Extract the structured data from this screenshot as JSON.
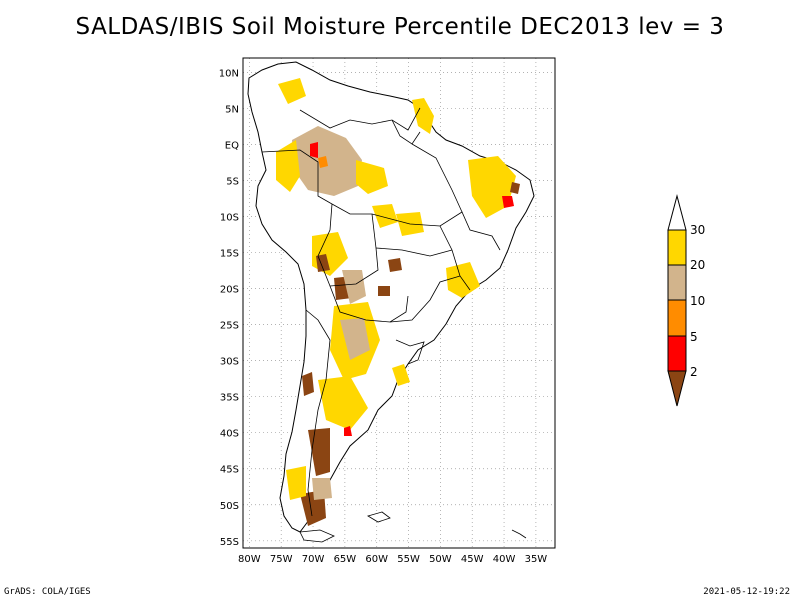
{
  "title": "SALDAS/IBIS Soil Moisture Percentile DEC2013 lev = 3",
  "footer": {
    "left": "GrADS: COLA/IGES",
    "right": "2021-05-12-19:22"
  },
  "map": {
    "region": "South America",
    "lon_range": [
      -81,
      -32
    ],
    "lat_range": [
      -56,
      12
    ],
    "lat_ticks": [
      {
        "v": 10,
        "label": "10N"
      },
      {
        "v": 5,
        "label": "5N"
      },
      {
        "v": 0,
        "label": "EQ"
      },
      {
        "v": -5,
        "label": "5S"
      },
      {
        "v": -10,
        "label": "10S"
      },
      {
        "v": -15,
        "label": "15S"
      },
      {
        "v": -20,
        "label": "20S"
      },
      {
        "v": -25,
        "label": "25S"
      },
      {
        "v": -30,
        "label": "30S"
      },
      {
        "v": -35,
        "label": "35S"
      },
      {
        "v": -40,
        "label": "40S"
      },
      {
        "v": -45,
        "label": "45S"
      },
      {
        "v": -50,
        "label": "50S"
      },
      {
        "v": -55,
        "label": "55S"
      }
    ],
    "lon_ticks": [
      {
        "v": -80,
        "label": "80W"
      },
      {
        "v": -75,
        "label": "75W"
      },
      {
        "v": -70,
        "label": "70W"
      },
      {
        "v": -65,
        "label": "65W"
      },
      {
        "v": -60,
        "label": "60W"
      },
      {
        "v": -55,
        "label": "55W"
      },
      {
        "v": -50,
        "label": "50W"
      },
      {
        "v": -45,
        "label": "45W"
      },
      {
        "v": -40,
        "label": "40W"
      },
      {
        "v": -35,
        "label": "35W"
      }
    ],
    "grid": "dotted"
  },
  "legend": {
    "type": "colorbar-vertical",
    "levels": [
      "2",
      "5",
      "10",
      "20",
      "30"
    ],
    "colors": {
      "below_2": "#8b4513",
      "2_5": "#ff0000",
      "5_10": "#ff8c00",
      "10_20": "#d2b48c",
      "20_30": "#ffd700",
      "above_30": "#ffffff"
    }
  },
  "colors": {
    "coast": "#000000",
    "border": "#000000",
    "frame": "#000000"
  }
}
